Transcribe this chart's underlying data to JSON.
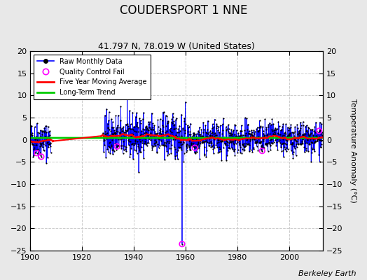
{
  "title": "COUDERSPORT 1 NNE",
  "subtitle": "41.797 N, 78.019 W (United States)",
  "ylabel": "Temperature Anomaly (°C)",
  "attribution": "Berkeley Earth",
  "xlim": [
    1900,
    2013
  ],
  "ylim": [
    -25,
    20
  ],
  "yticks": [
    -25,
    -20,
    -15,
    -10,
    -5,
    0,
    5,
    10,
    15,
    20
  ],
  "xticks": [
    1900,
    1920,
    1940,
    1960,
    1980,
    2000
  ],
  "fig_bg_color": "#e8e8e8",
  "plot_bg_color": "#ffffff",
  "grid_color": "#cccccc",
  "line_color": "#0000ff",
  "ma_color": "#ff0000",
  "trend_color": "#00cc00",
  "qc_color": "#ff00ff",
  "title_fontsize": 12,
  "subtitle_fontsize": 9,
  "seed": 42,
  "start_year": 1900,
  "end_year": 2012,
  "gap_start": 1908,
  "gap_end": 1928,
  "big_outlier_year": 1958,
  "big_outlier_month": 7,
  "big_outlier_value": -23.5
}
